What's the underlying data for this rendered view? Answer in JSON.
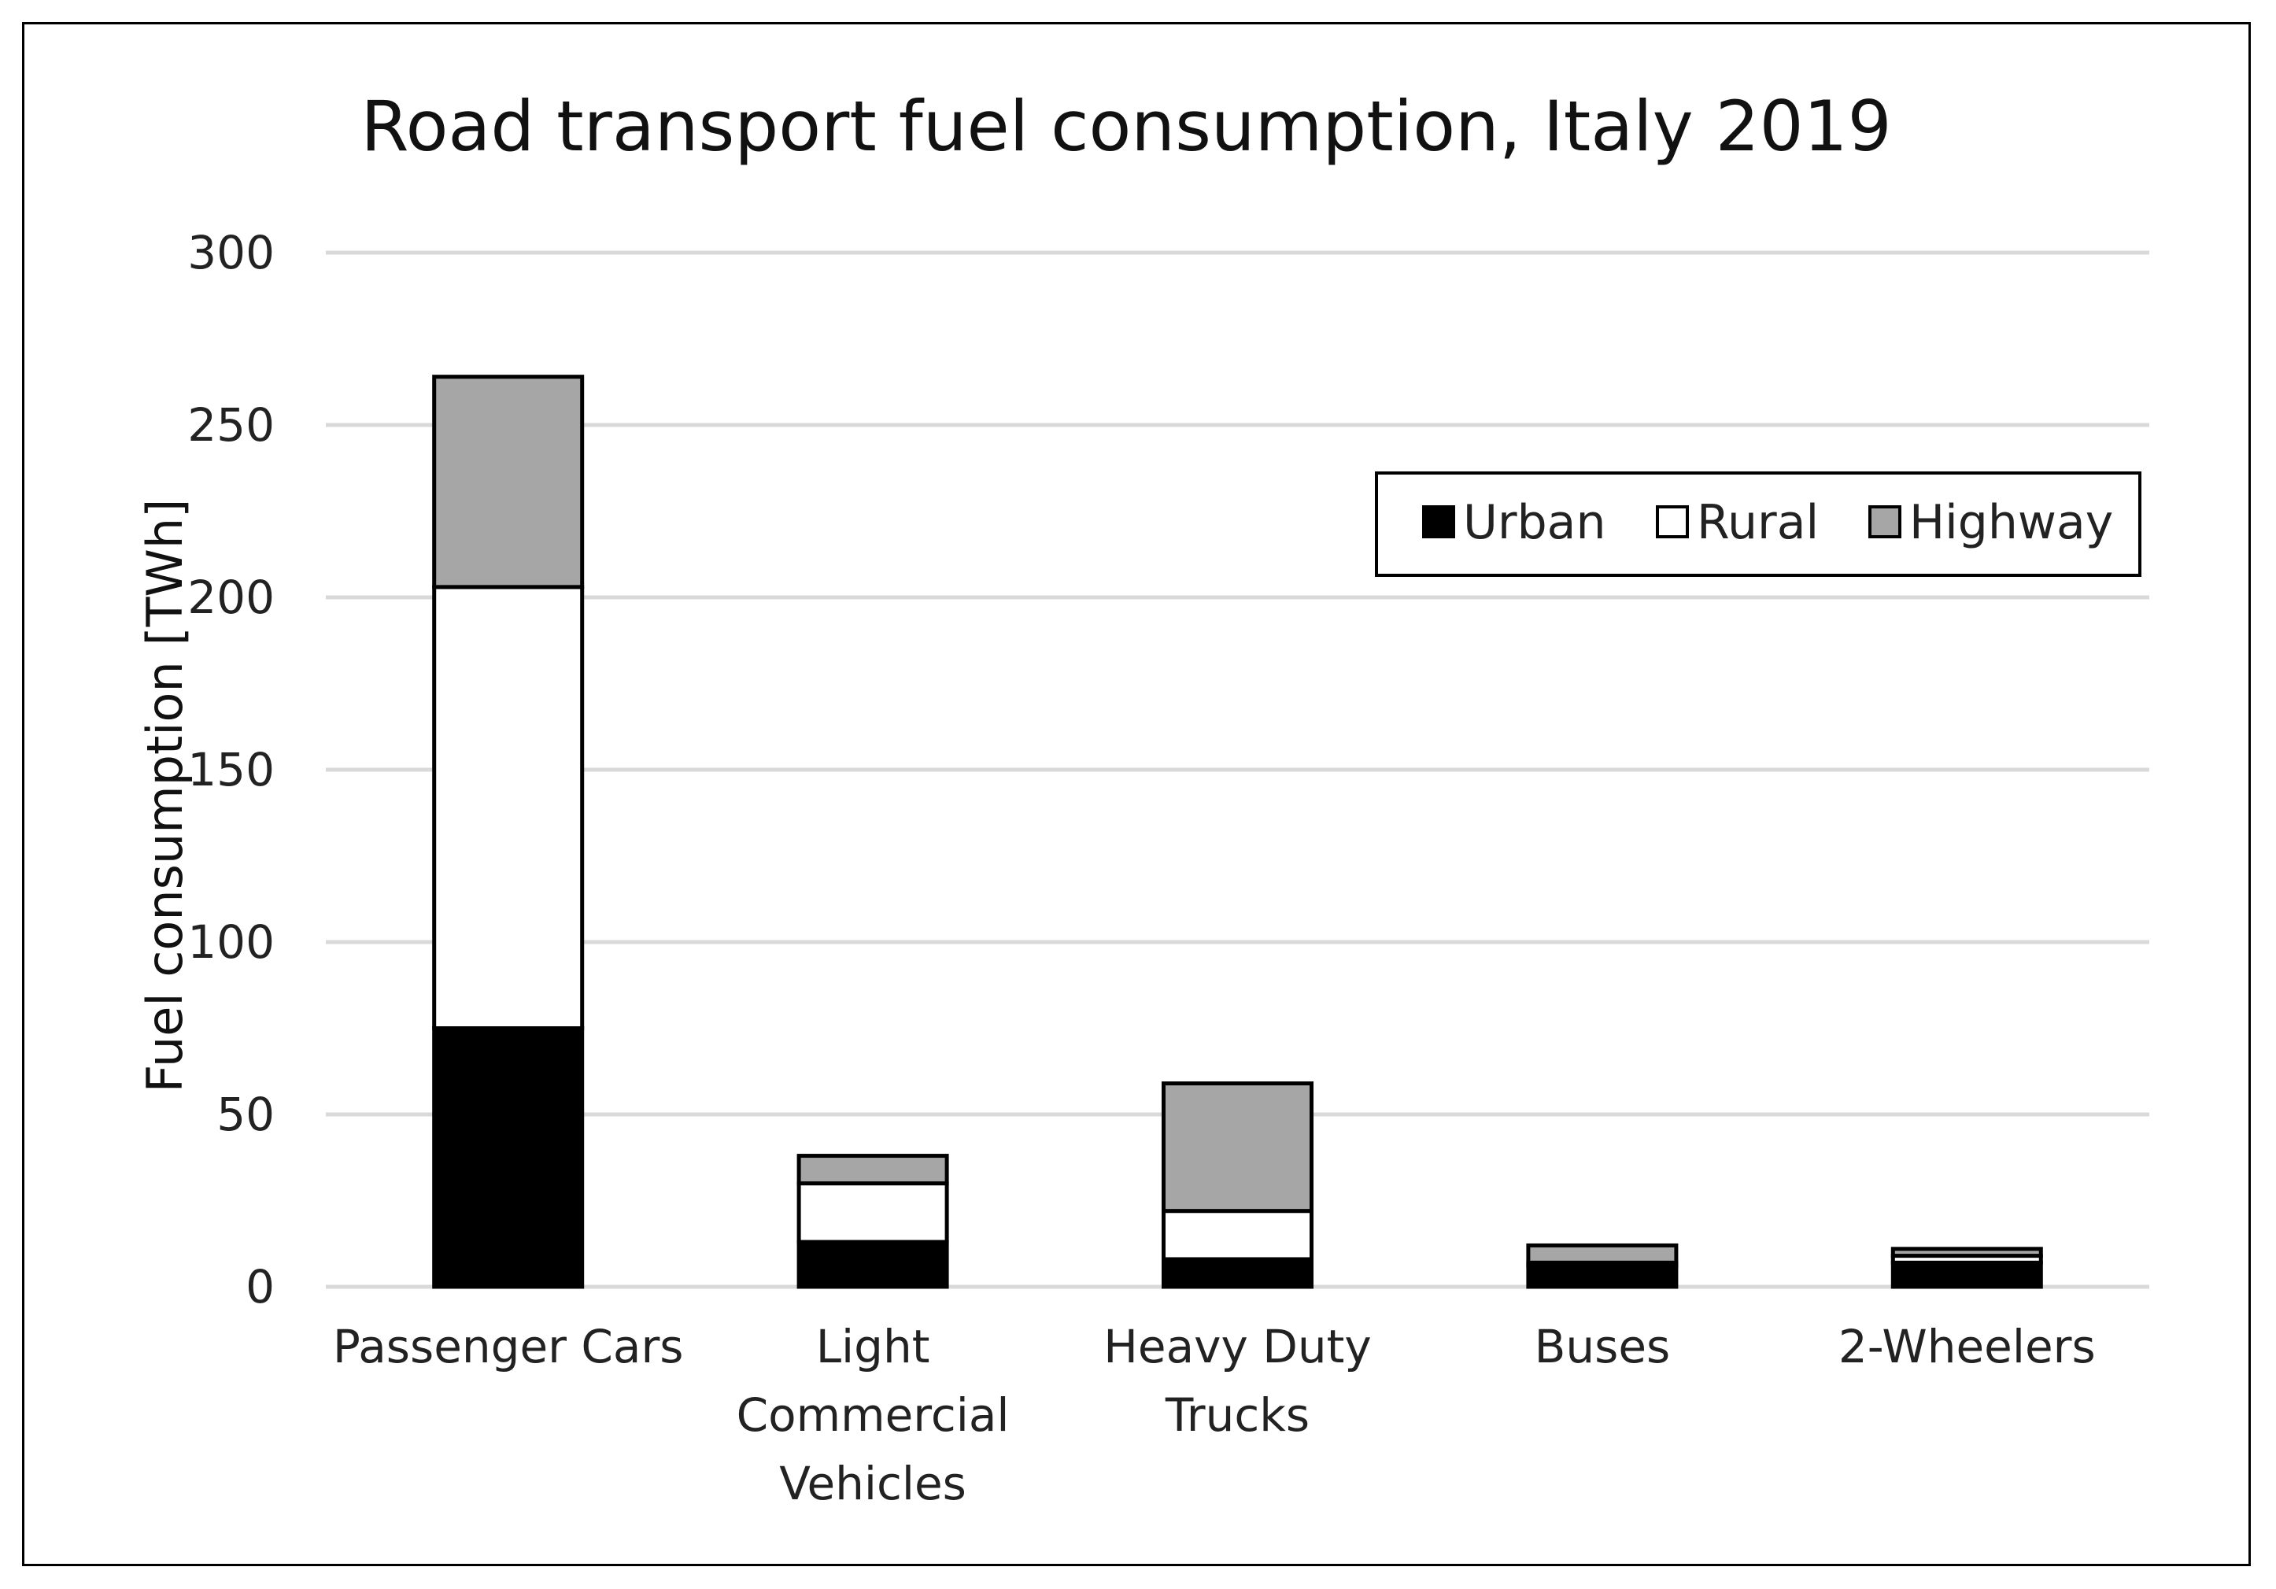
{
  "chart_data": {
    "type": "bar",
    "stacked": true,
    "title": "Road transport fuel consumption, Italy 2019",
    "ylabel": "Fuel consumption [TWh]",
    "xlabel": "",
    "ylim": [
      0,
      300
    ],
    "yticks": [
      0,
      50,
      100,
      150,
      200,
      250,
      300
    ],
    "grid": true,
    "legend_position": "top-right",
    "categories": [
      [
        "Passenger Cars"
      ],
      [
        "Light",
        "Commercial",
        "Vehicles"
      ],
      [
        "Heavy Duty",
        "Trucks"
      ],
      [
        "Buses"
      ],
      [
        "2-Wheelers"
      ]
    ],
    "series": [
      {
        "name": "Urban",
        "color": "#000000",
        "values": [
          75,
          13,
          8,
          6,
          7
        ]
      },
      {
        "name": "Rural",
        "color": "#ffffff",
        "values": [
          128,
          17,
          14,
          1,
          2
        ]
      },
      {
        "name": "Highway",
        "color": "#a6a6a6",
        "values": [
          61,
          8,
          37,
          5,
          2
        ]
      }
    ]
  }
}
